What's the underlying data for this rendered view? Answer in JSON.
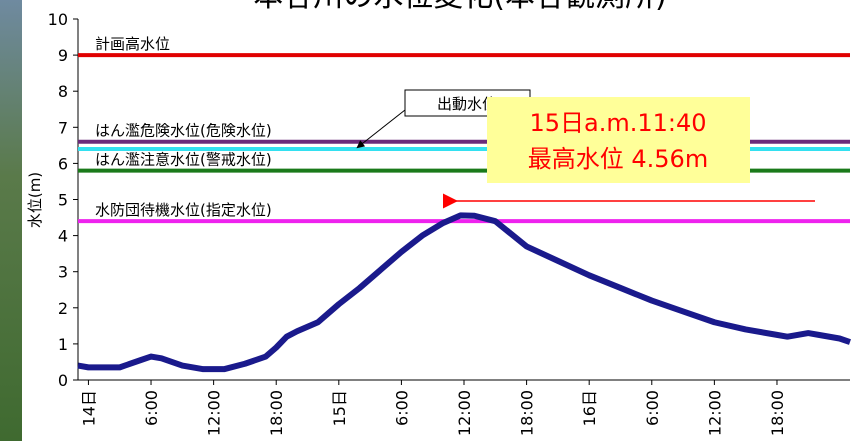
{
  "chart_data": {
    "type": "line",
    "title": "本谷川の水位変化(本谷観測所)",
    "y_label": "水位(m)",
    "x": [
      -1,
      0,
      3,
      5,
      6,
      7,
      9,
      11,
      13,
      15,
      17,
      18,
      19,
      20,
      22,
      24,
      26,
      28,
      30,
      32,
      34,
      35.67,
      37,
      39,
      42,
      45,
      48,
      51,
      54,
      57,
      60,
      63,
      66,
      67,
      69,
      70,
      72,
      73
    ],
    "series": [
      {
        "color": "#1a1a8c",
        "values": [
          0.4,
          0.35,
          0.35,
          0.55,
          0.65,
          0.6,
          0.4,
          0.3,
          0.3,
          0.45,
          0.65,
          0.9,
          1.2,
          1.35,
          1.6,
          2.1,
          2.55,
          3.05,
          3.55,
          4.0,
          4.35,
          4.56,
          4.55,
          4.4,
          3.7,
          3.3,
          2.9,
          2.55,
          2.2,
          1.9,
          1.6,
          1.4,
          1.25,
          1.2,
          1.3,
          1.25,
          1.15,
          1.05
        ]
      }
    ],
    "xlim": [
      -1,
      73
    ],
    "xticks": [
      {
        "value": 0,
        "label": "14日"
      },
      {
        "value": 6,
        "label": "6:00"
      },
      {
        "value": 12,
        "label": "12:00"
      },
      {
        "value": 18,
        "label": "18:00"
      },
      {
        "value": 24,
        "label": "15日"
      },
      {
        "value": 30,
        "label": "6:00"
      },
      {
        "value": 36,
        "label": "12:00"
      },
      {
        "value": 42,
        "label": "18:00"
      },
      {
        "value": 48,
        "label": "16日"
      },
      {
        "value": 54,
        "label": "6:00"
      },
      {
        "value": 60,
        "label": "12:00"
      },
      {
        "value": 66,
        "label": "18:00"
      }
    ],
    "ylim": [
      0,
      10
    ],
    "yticks": [
      0,
      1,
      2,
      3,
      4,
      5,
      6,
      7,
      8,
      9,
      10
    ],
    "reference_lines": [
      {
        "label": "計画高水位",
        "value": 9.0,
        "color": "#e00000"
      },
      {
        "label": "はん濫危険水位(危険水位)",
        "value": 6.6,
        "color": "#6a2a7a"
      },
      {
        "label": "出動水位",
        "value": 6.4,
        "color": "#33e0f0"
      },
      {
        "label": "はん濫注意水位(警戒水位)",
        "value": 5.8,
        "color": "#1a7a1a"
      },
      {
        "label": "水防団待機水位(指定水位)",
        "value": 4.4,
        "color": "#ee22ee"
      }
    ],
    "annotation": [
      "15日a.m.11:40",
      "最高水位 4.56m"
    ]
  }
}
